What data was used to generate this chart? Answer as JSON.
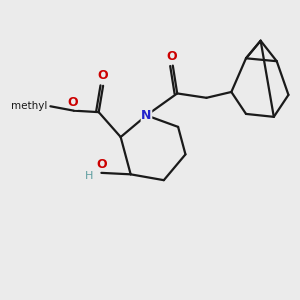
{
  "bg_color": "#ebebeb",
  "bond_color": "#1a1a1a",
  "N_color": "#2222cc",
  "O_color": "#cc0000",
  "OH_teal_color": "#5f9ea0",
  "lw": 1.6,
  "xlim": [
    0,
    10
  ],
  "ylim": [
    0,
    10
  ],
  "figsize": [
    3.0,
    3.0
  ],
  "dpi": 100
}
